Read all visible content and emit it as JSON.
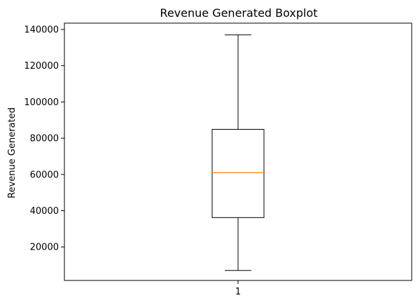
{
  "chart_data": {
    "type": "boxplot",
    "title": "Revenue Generated Boxplot",
    "xlabel": "",
    "ylabel": "Revenue Generated",
    "categories": [
      "1"
    ],
    "boxes": [
      {
        "category": "1",
        "whisker_low": 7000,
        "q1": 36200,
        "median": 61000,
        "q3": 84900,
        "whisker_high": 137000
      }
    ],
    "xlim": [
      0.5,
      1.5
    ],
    "ylim": [
      1500,
      143500
    ],
    "yticks": [
      20000,
      40000,
      60000,
      80000,
      100000,
      120000,
      140000
    ],
    "grid": false,
    "colors": {
      "box": "#000000",
      "median": "#ff7f0e",
      "whisker": "#000000"
    }
  }
}
